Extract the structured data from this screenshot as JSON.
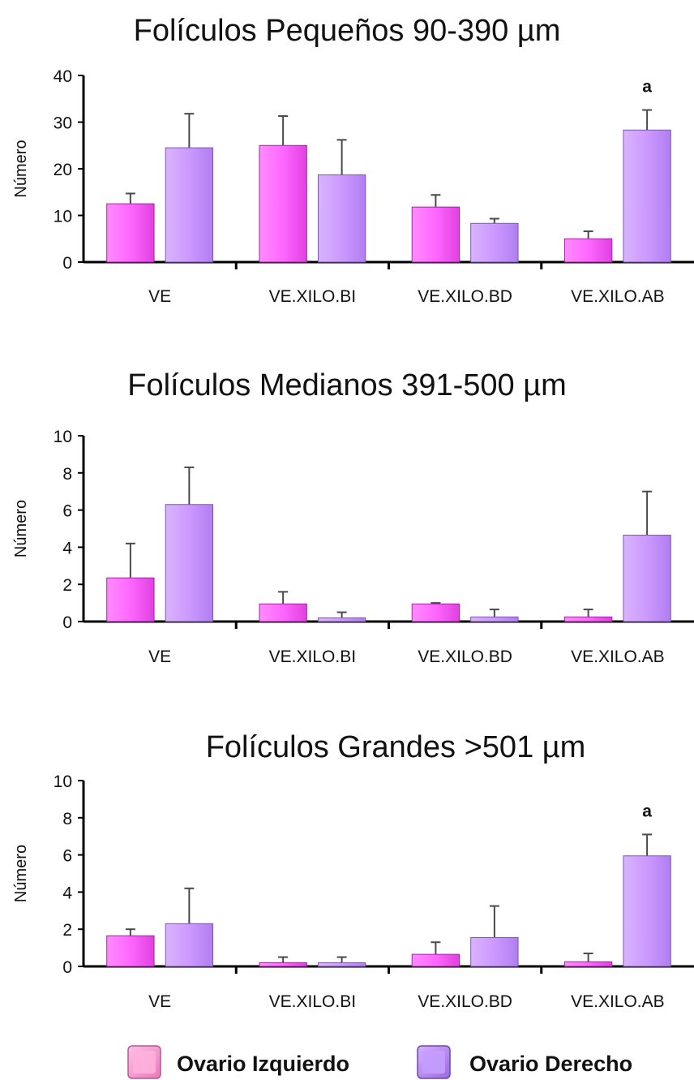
{
  "chart_data": [
    {
      "type": "bar",
      "title": "Folículos Pequeños 90-390 µm",
      "ylabel": "Número",
      "ylim": [
        0,
        40
      ],
      "yticks": [
        0,
        10,
        20,
        30,
        40
      ],
      "categories": [
        "VE",
        "VE.XILO.BI",
        "VE.XILO.BD",
        "VE.XILO.AB"
      ],
      "series": [
        {
          "name": "Ovario Izquierdo",
          "values": [
            12.5,
            25,
            11.8,
            5
          ],
          "errors": [
            2.2,
            6.3,
            2.6,
            1.6
          ]
        },
        {
          "name": "Ovario Derecho",
          "values": [
            24.5,
            18.7,
            8.3,
            28.3
          ],
          "errors": [
            7.3,
            7.5,
            1.0,
            4.3
          ]
        }
      ],
      "annotations": [
        {
          "category": "VE.XILO.AB",
          "series": "Ovario Derecho",
          "text": "a"
        }
      ]
    },
    {
      "type": "bar",
      "title": "Folículos Medianos 391-500 µm",
      "ylabel": "Número",
      "ylim": [
        0,
        10
      ],
      "yticks": [
        0,
        2,
        4,
        6,
        8,
        10
      ],
      "categories": [
        "VE",
        "VE.XILO.BI",
        "VE.XILO.BD",
        "VE.XILO.AB"
      ],
      "series": [
        {
          "name": "Ovario Izquierdo",
          "values": [
            2.35,
            0.95,
            0.95,
            0.25
          ],
          "errors": [
            1.85,
            0.65,
            0.05,
            0.4
          ]
        },
        {
          "name": "Ovario Derecho",
          "values": [
            6.3,
            0.2,
            0.25,
            4.65
          ],
          "errors": [
            2.0,
            0.3,
            0.4,
            2.35
          ]
        }
      ],
      "annotations": []
    },
    {
      "type": "bar",
      "title": "Folículos Grandes >501 µm",
      "ylabel": "Número",
      "ylim": [
        0,
        10
      ],
      "yticks": [
        0,
        2,
        4,
        6,
        8,
        10
      ],
      "categories": [
        "VE",
        "VE.XILO.BI",
        "VE.XILO.BD",
        "VE.XILO.AB"
      ],
      "series": [
        {
          "name": "Ovario Izquierdo",
          "values": [
            1.65,
            0.2,
            0.65,
            0.25
          ],
          "errors": [
            0.35,
            0.3,
            0.65,
            0.45
          ]
        },
        {
          "name": "Ovario Derecho",
          "values": [
            2.3,
            0.2,
            1.55,
            5.95
          ],
          "errors": [
            1.9,
            0.3,
            1.7,
            1.15
          ]
        }
      ],
      "annotations": [
        {
          "category": "VE.XILO.AB",
          "series": "Ovario Derecho",
          "text": "a"
        }
      ]
    }
  ],
  "legend": {
    "placement": "bottom",
    "items": [
      {
        "label": "Ovario Izquierdo",
        "color": "#ff66ff"
      },
      {
        "label": "Ovario Derecho",
        "color": "#cc99ff"
      }
    ]
  },
  "colors": {
    "left_ovary": "#ff66ff",
    "left_ovary_light": "#ffb0ff",
    "right_ovary": "#cc99ff",
    "right_ovary_light": "#e6ccff",
    "axis": "#000000",
    "error_bar": "#4a4a4a"
  }
}
